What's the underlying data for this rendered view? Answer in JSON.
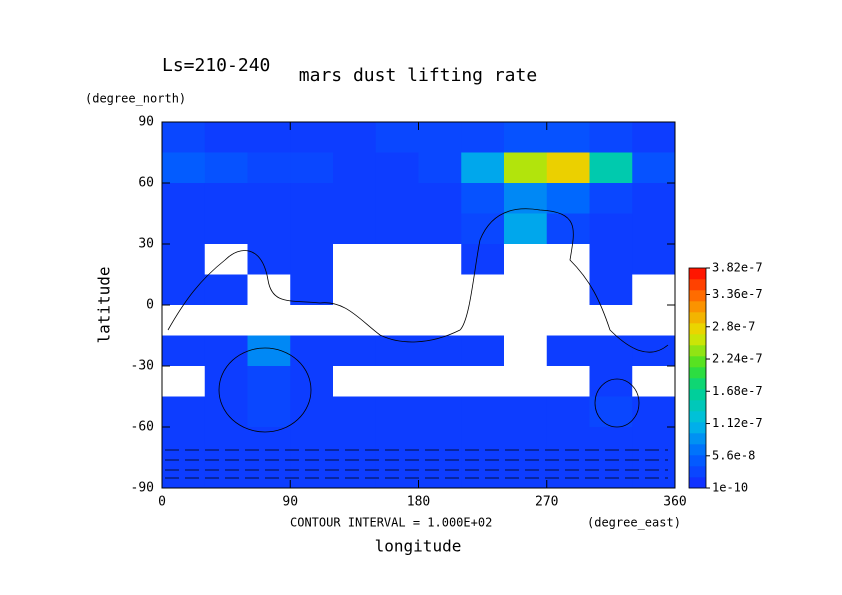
{
  "chart_data": {
    "type": "contour",
    "title": "mars dust lifting rate",
    "subtitle": "Ls=210-240",
    "y_unit": "(degree_north)",
    "x_unit": "(degree_east)",
    "ylabel": "latitude",
    "xlabel": "longitude",
    "annotation": "CONTOUR INTERVAL = 1.000E+02",
    "xlim": [
      0,
      360
    ],
    "xticks": [
      0,
      90,
      180,
      270,
      360
    ],
    "ylim": [
      -90,
      90
    ],
    "yticks": [
      -90,
      -60,
      -30,
      0,
      30,
      60,
      90
    ],
    "x": [
      15,
      45,
      75,
      105,
      135,
      165,
      195,
      225,
      255,
      285,
      315,
      345
    ],
    "y": [
      82.5,
      67.5,
      52.5,
      37.5,
      22.5,
      7.5,
      -7.5,
      -22.5,
      -37.5,
      -52.5,
      -67.5,
      -82.5
    ],
    "z": [
      [
        3e-08,
        2e-08,
        2e-08,
        2e-08,
        2e-08,
        3e-08,
        3e-08,
        3e-08,
        4e-08,
        4e-08,
        3e-08,
        2e-08
      ],
      [
        5e-08,
        4e-08,
        3e-08,
        3e-08,
        2e-08,
        2e-08,
        3e-08,
        1e-07,
        2.5e-07,
        2.8e-07,
        1.5e-07,
        4e-08
      ],
      [
        2e-08,
        2e-08,
        2e-08,
        2e-08,
        2e-08,
        2e-08,
        2e-08,
        4e-08,
        8e-08,
        6e-08,
        3e-08,
        2e-08
      ],
      [
        2e-08,
        2e-08,
        2e-08,
        2e-08,
        2e-08,
        2e-08,
        2e-08,
        3e-08,
        1e-07,
        3e-08,
        2e-08,
        2e-08
      ],
      [
        2e-08,
        0,
        2e-08,
        2e-08,
        0,
        0,
        0,
        2e-08,
        0,
        0,
        2e-08,
        2e-08
      ],
      [
        2e-08,
        2e-08,
        0,
        2e-08,
        0,
        0,
        0,
        0,
        0,
        0,
        2e-08,
        0
      ],
      [
        0,
        0,
        0,
        0,
        0,
        0,
        0,
        0,
        0,
        0,
        0,
        0
      ],
      [
        2e-08,
        2e-08,
        8e-08,
        2e-08,
        2e-08,
        2e-08,
        2e-08,
        2e-08,
        0,
        2e-08,
        2e-08,
        2e-08
      ],
      [
        0,
        2e-08,
        3e-08,
        2e-08,
        0,
        0,
        0,
        0,
        0,
        0,
        2e-08,
        0
      ],
      [
        2e-08,
        2e-08,
        3e-08,
        2e-08,
        2e-08,
        2e-08,
        2e-08,
        2e-08,
        2e-08,
        2e-08,
        3e-08,
        2e-08
      ],
      [
        2e-08,
        2e-08,
        2e-08,
        2e-08,
        2e-08,
        2e-08,
        2e-08,
        2e-08,
        2e-08,
        2e-08,
        2e-08,
        2e-08
      ],
      [
        2e-08,
        2e-08,
        2e-08,
        2e-08,
        2e-08,
        2e-08,
        2e-08,
        2e-08,
        2e-08,
        2e-08,
        2e-08,
        2e-08
      ]
    ],
    "colorbar_ticks": [
      1e-10,
      5.6e-08,
      1.12e-07,
      1.68e-07,
      2.24e-07,
      2.8e-07,
      3.36e-07,
      3.82e-07
    ]
  }
}
